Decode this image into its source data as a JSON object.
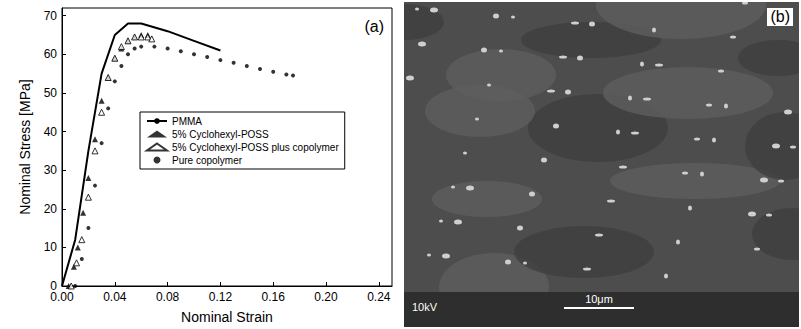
{
  "chart_data": {
    "type": "line",
    "annotation": "(a)",
    "x_label": "Nominal Strain",
    "y_label": "Nominal Stress [MPa]",
    "xlim": [
      0,
      0.25
    ],
    "xticks": [
      {
        "value": 0,
        "label": "0.00"
      },
      {
        "value": 0.04,
        "label": "0.04"
      },
      {
        "value": 0.08,
        "label": "0.08"
      },
      {
        "value": 0.12,
        "label": "0.12"
      },
      {
        "value": 0.16,
        "label": "0.16"
      },
      {
        "value": 0.2,
        "label": "0.20"
      },
      {
        "value": 0.24,
        "label": "0.24"
      }
    ],
    "ylim": [
      0,
      72
    ],
    "yticks": [
      0,
      10,
      20,
      30,
      40,
      50,
      60,
      70
    ],
    "grid": false,
    "legend": "center",
    "series": [
      {
        "name": "PMMA",
        "type": "line",
        "marker": "none",
        "line_style": "solid",
        "color": "#000000",
        "x": [
          0,
          0.01,
          0.02,
          0.03,
          0.04,
          0.05,
          0.06,
          0.08,
          0.1,
          0.12
        ],
        "values": [
          0,
          12,
          35,
          55,
          65,
          68,
          68,
          66,
          63.5,
          61
        ]
      },
      {
        "name": "5% Cyclohexyl-POSS",
        "type": "scatter",
        "marker": "triangle",
        "color": "#000000",
        "x": [
          0.005,
          0.009,
          0.012,
          0.016,
          0.02,
          0.025,
          0.03,
          0.035,
          0.04,
          0.045,
          0.05,
          0.055,
          0.06,
          0.065
        ],
        "values": [
          0,
          5,
          10,
          19,
          28,
          38,
          48,
          54,
          59,
          61.5,
          63.5,
          64.5,
          65,
          65
        ]
      },
      {
        "name": "5% Cyclohexyl-POSS plus copolymer",
        "type": "scatter",
        "marker": "triangle-open",
        "color": "#000000",
        "x": [
          0.007,
          0.011,
          0.015,
          0.02,
          0.025,
          0.03,
          0.035,
          0.04,
          0.045,
          0.05,
          0.055,
          0.06,
          0.065,
          0.068
        ],
        "values": [
          0,
          6,
          12,
          23,
          35,
          45,
          54,
          59,
          62,
          63.5,
          64.5,
          64.5,
          64.5,
          64
        ]
      },
      {
        "name": "Pure copolymer",
        "type": "scatter",
        "marker": "circle",
        "color": "#000000",
        "x": [
          0.01,
          0.015,
          0.02,
          0.025,
          0.03,
          0.035,
          0.04,
          0.045,
          0.05,
          0.055,
          0.06,
          0.07,
          0.08,
          0.09,
          0.1,
          0.11,
          0.12,
          0.13,
          0.14,
          0.15,
          0.16,
          0.17,
          0.175
        ],
        "values": [
          0,
          7,
          15,
          26,
          37,
          46,
          53,
          57,
          60,
          61.5,
          62,
          62,
          61.5,
          60.8,
          60,
          59.3,
          58.5,
          57.8,
          57,
          56.2,
          55.5,
          54.8,
          54.5
        ]
      }
    ]
  },
  "micrograph": {
    "letter": "(b)",
    "voltage_label": "10kV",
    "scale_bar_label": "10μm"
  }
}
